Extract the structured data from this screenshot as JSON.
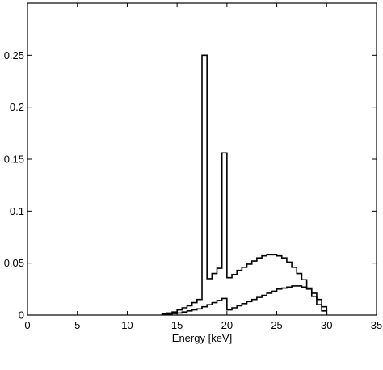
{
  "chart_data": {
    "type": "line",
    "style": "step-histogram",
    "title": "",
    "xlabel": "Energy [keV]",
    "ylabel": "",
    "xlim": [
      0,
      35
    ],
    "ylim": [
      0,
      0.3
    ],
    "xticks": [
      0,
      5,
      10,
      15,
      20,
      25,
      30,
      35
    ],
    "xtick_labels": [
      "0",
      "5",
      "10",
      "15",
      "20",
      "25",
      "30",
      "35"
    ],
    "yticks": [
      0,
      0.05,
      0.1,
      0.15,
      0.2,
      0.25
    ],
    "ytick_labels": [
      "0",
      "0.05",
      "0.1",
      "0.15",
      "0.2",
      "0.25"
    ],
    "grid": false,
    "legend": "none",
    "bin_width_keV": 0.5,
    "series": [
      {
        "x": [
          13.5,
          14,
          14.5,
          15,
          15.5,
          16,
          16.5,
          17,
          17.5,
          18,
          18.5,
          19,
          19.5,
          20,
          20.5,
          21,
          21.5,
          22,
          22.5,
          23,
          23.5,
          24,
          24.5,
          25,
          25.5,
          26,
          26.5,
          27,
          27.5,
          28,
          28.5,
          29,
          29.5
        ],
        "values": [
          0.001,
          0.002,
          0.003,
          0.005,
          0.007,
          0.009,
          0.012,
          0.015,
          0.25,
          0.035,
          0.04,
          0.045,
          0.156,
          0.036,
          0.039,
          0.043,
          0.046,
          0.049,
          0.052,
          0.055,
          0.057,
          0.058,
          0.058,
          0.057,
          0.055,
          0.051,
          0.046,
          0.04,
          0.034,
          0.026,
          0.018,
          0.01,
          0.004
        ]
      },
      {
        "x": [
          13.5,
          14,
          14.5,
          15,
          15.5,
          16,
          16.5,
          17,
          17.5,
          18,
          18.5,
          19,
          19.5,
          20,
          20.5,
          21,
          21.5,
          22,
          22.5,
          23,
          23.5,
          24,
          24.5,
          25,
          25.5,
          26,
          26.5,
          27,
          27.5,
          28,
          28.5,
          29,
          29.5
        ],
        "values": [
          0.0005,
          0.001,
          0.0015,
          0.002,
          0.003,
          0.004,
          0.005,
          0.006,
          0.008,
          0.01,
          0.012,
          0.014,
          0.016,
          0.005,
          0.007,
          0.009,
          0.011,
          0.013,
          0.015,
          0.017,
          0.019,
          0.021,
          0.023,
          0.025,
          0.026,
          0.027,
          0.028,
          0.028,
          0.027,
          0.025,
          0.021,
          0.015,
          0.008
        ]
      }
    ]
  },
  "colors": {
    "background": "#ffffff",
    "axis": "#000000",
    "series_line": "#000000"
  }
}
